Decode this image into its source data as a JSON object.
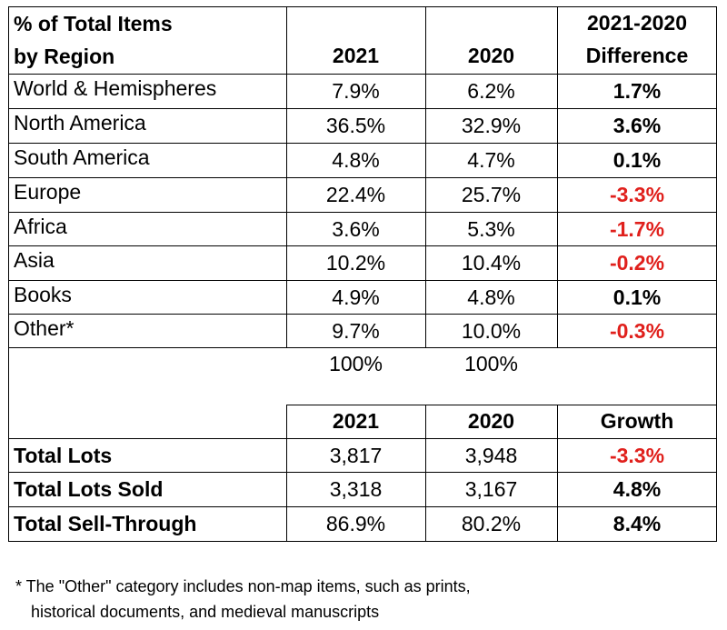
{
  "header": {
    "title_line1": "% of Total Items",
    "title_line2": "by Region",
    "col_2021": "2021",
    "col_2020": "2020",
    "diff_line1": "2021-2020",
    "diff_line2": "Difference"
  },
  "regions": [
    {
      "name": "World & Hemispheres",
      "y2021": "7.9%",
      "y2020": "6.2%",
      "diff": "1.7%",
      "negative": false
    },
    {
      "name": "North America",
      "y2021": "36.5%",
      "y2020": "32.9%",
      "diff": "3.6%",
      "negative": false
    },
    {
      "name": "South America",
      "y2021": "4.8%",
      "y2020": "4.7%",
      "diff": "0.1%",
      "negative": false
    },
    {
      "name": "Europe",
      "y2021": "22.4%",
      "y2020": "25.7%",
      "diff": "-3.3%",
      "negative": true
    },
    {
      "name": "Africa",
      "y2021": "3.6%",
      "y2020": "5.3%",
      "diff": "-1.7%",
      "negative": true
    },
    {
      "name": "Asia",
      "y2021": "10.2%",
      "y2020": "10.4%",
      "diff": "-0.2%",
      "negative": true
    },
    {
      "name": "Books",
      "y2021": "4.9%",
      "y2020": "4.8%",
      "diff": "0.1%",
      "negative": false
    },
    {
      "name": "Other*",
      "y2021": "9.7%",
      "y2020": "10.0%",
      "diff": "-0.3%",
      "negative": true
    }
  ],
  "totals_row": {
    "y2021": "100%",
    "y2020": "100%"
  },
  "lots_header": {
    "col_2021": "2021",
    "col_2020": "2020",
    "col_growth": "Growth"
  },
  "lots": [
    {
      "name": "Total Lots",
      "y2021": "3,817",
      "y2020": "3,948",
      "growth": "-3.3%",
      "negative": true
    },
    {
      "name": "Total Lots Sold",
      "y2021": "3,318",
      "y2020": "3,167",
      "growth": "4.8%",
      "negative": false
    },
    {
      "name": "Total Sell-Through",
      "y2021": "86.9%",
      "y2020": "80.2%",
      "growth": "8.4%",
      "negative": false
    }
  ],
  "footnote": {
    "line1": "* The \"Other\" category includes non-map items, such as prints,",
    "line2": "historical documents, and medieval manuscripts"
  },
  "colors": {
    "negative": "#e0201c",
    "text": "#000000",
    "background": "#ffffff"
  }
}
